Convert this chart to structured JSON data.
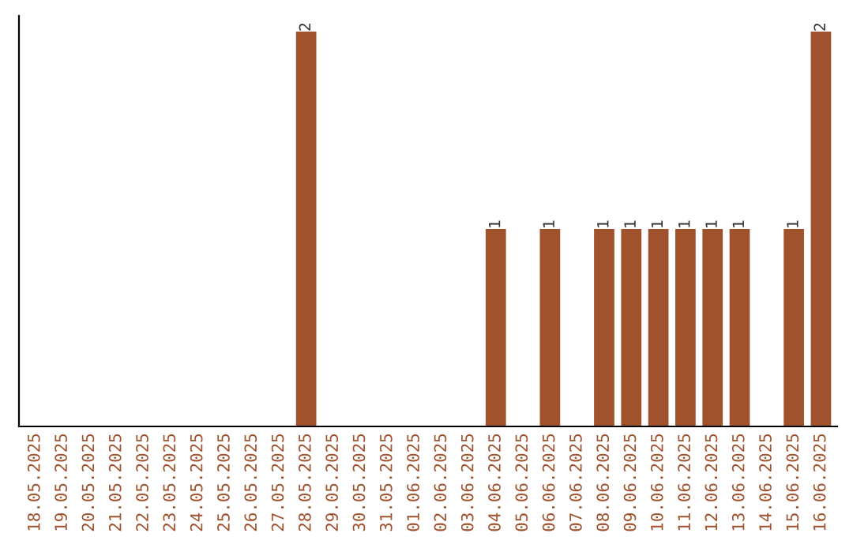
{
  "chart_data": {
    "type": "bar",
    "categories": [
      "18.05.2025",
      "19.05.2025",
      "20.05.2025",
      "21.05.2025",
      "22.05.2025",
      "23.05.2025",
      "24.05.2025",
      "25.05.2025",
      "26.05.2025",
      "27.05.2025",
      "28.05.2025",
      "29.05.2025",
      "30.05.2025",
      "31.05.2025",
      "01.06.2025",
      "02.06.2025",
      "03.06.2025",
      "04.06.2025",
      "05.06.2025",
      "06.06.2025",
      "07.06.2025",
      "08.06.2025",
      "09.06.2025",
      "10.06.2025",
      "11.06.2025",
      "12.06.2025",
      "13.06.2025",
      "14.06.2025",
      "15.06.2025",
      "16.06.2025"
    ],
    "values": [
      0,
      0,
      0,
      0,
      0,
      0,
      0,
      0,
      0,
      0,
      2,
      0,
      0,
      0,
      0,
      0,
      0,
      1,
      0,
      1,
      0,
      1,
      1,
      1,
      1,
      1,
      1,
      0,
      1,
      2
    ],
    "value_labels": [
      null,
      null,
      null,
      null,
      null,
      null,
      null,
      null,
      null,
      null,
      "2",
      null,
      null,
      null,
      null,
      null,
      null,
      "1",
      null,
      "1",
      null,
      "1",
      "1",
      "1",
      "1",
      "1",
      "1",
      null,
      "1",
      "2"
    ],
    "color": "#a0522d",
    "ylim": [
      0,
      2.08
    ],
    "tick_labels": "x",
    "grid": false,
    "legend": false
  }
}
